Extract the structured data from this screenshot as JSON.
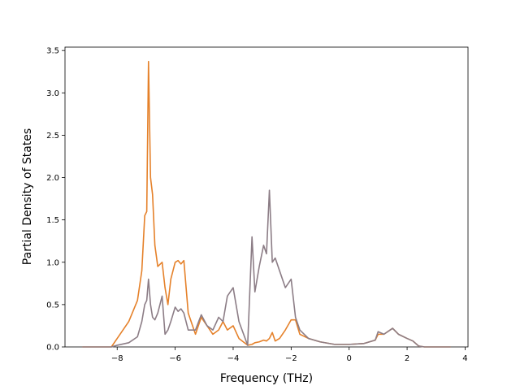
{
  "chart_data": {
    "type": "line",
    "xlabel": "Frequency (THz)",
    "ylabel": "Partial Density of States",
    "x": [
      -9.2,
      -8.2,
      -8.0,
      -7.6,
      -7.3,
      -7.15,
      -7.05,
      -6.98,
      -6.92,
      -6.85,
      -6.78,
      -6.7,
      -6.6,
      -6.45,
      -6.35,
      -6.25,
      -6.15,
      -6.0,
      -5.9,
      -5.8,
      -5.7,
      -5.55,
      -5.3,
      -5.1,
      -4.9,
      -4.7,
      -4.5,
      -4.35,
      -4.2,
      -4.0,
      -3.8,
      -3.5,
      -3.35,
      -3.25,
      -3.1,
      -2.95,
      -2.85,
      -2.75,
      -2.65,
      -2.55,
      -2.4,
      -2.2,
      -2.0,
      -1.85,
      -1.7,
      -1.4,
      -1.0,
      -0.5,
      0,
      0.5,
      0.9,
      1.0,
      1.2,
      1.5,
      1.7,
      2.0,
      2.2,
      2.4,
      2.6,
      3.5
    ],
    "series": [
      {
        "color": "#e5812a",
        "values": [
          0,
          0,
          0.1,
          0.3,
          0.55,
          0.9,
          1.55,
          1.6,
          3.37,
          2.0,
          1.8,
          1.2,
          0.95,
          1.0,
          0.7,
          0.5,
          0.8,
          1.0,
          1.02,
          0.98,
          1.02,
          0.4,
          0.15,
          0.35,
          0.25,
          0.15,
          0.2,
          0.3,
          0.2,
          0.25,
          0.1,
          0.02,
          0.03,
          0.05,
          0.06,
          0.08,
          0.07,
          0.1,
          0.17,
          0.07,
          0.1,
          0.2,
          0.32,
          0.32,
          0.15,
          0.1,
          0.06,
          0.03,
          0.03,
          0.04,
          0.08,
          0.15,
          0.15,
          0.22,
          0.15,
          0.1,
          0.07,
          0.01,
          0,
          0
        ]
      },
      {
        "color": "#8c7d86",
        "values": [
          0,
          0,
          0.02,
          0.05,
          0.12,
          0.3,
          0.5,
          0.55,
          0.8,
          0.5,
          0.35,
          0.32,
          0.4,
          0.6,
          0.15,
          0.2,
          0.3,
          0.47,
          0.42,
          0.45,
          0.4,
          0.2,
          0.2,
          0.38,
          0.25,
          0.2,
          0.35,
          0.3,
          0.6,
          0.7,
          0.3,
          0.02,
          1.3,
          0.65,
          0.95,
          1.2,
          1.1,
          1.85,
          1.0,
          1.05,
          0.9,
          0.7,
          0.8,
          0.35,
          0.2,
          0.1,
          0.06,
          0.03,
          0.03,
          0.04,
          0.08,
          0.18,
          0.15,
          0.22,
          0.15,
          0.1,
          0.07,
          0.01,
          0,
          0
        ]
      }
    ],
    "xlim": [
      -9.8,
      4.1
    ],
    "ylim": [
      0,
      3.54
    ],
    "xticks": [
      {
        "value": -8,
        "label": "−8"
      },
      {
        "value": -6,
        "label": "−6"
      },
      {
        "value": -4,
        "label": "−4"
      },
      {
        "value": -2,
        "label": "−2"
      },
      0,
      2,
      4
    ],
    "yticks": [
      {
        "value": 0,
        "label": "0.0"
      },
      0.5,
      {
        "value": 1,
        "label": "1.0"
      },
      1.5,
      {
        "value": 2,
        "label": "2.0"
      },
      2.5,
      {
        "value": 3,
        "label": "3.0"
      },
      3.5
    ],
    "grid": false
  }
}
